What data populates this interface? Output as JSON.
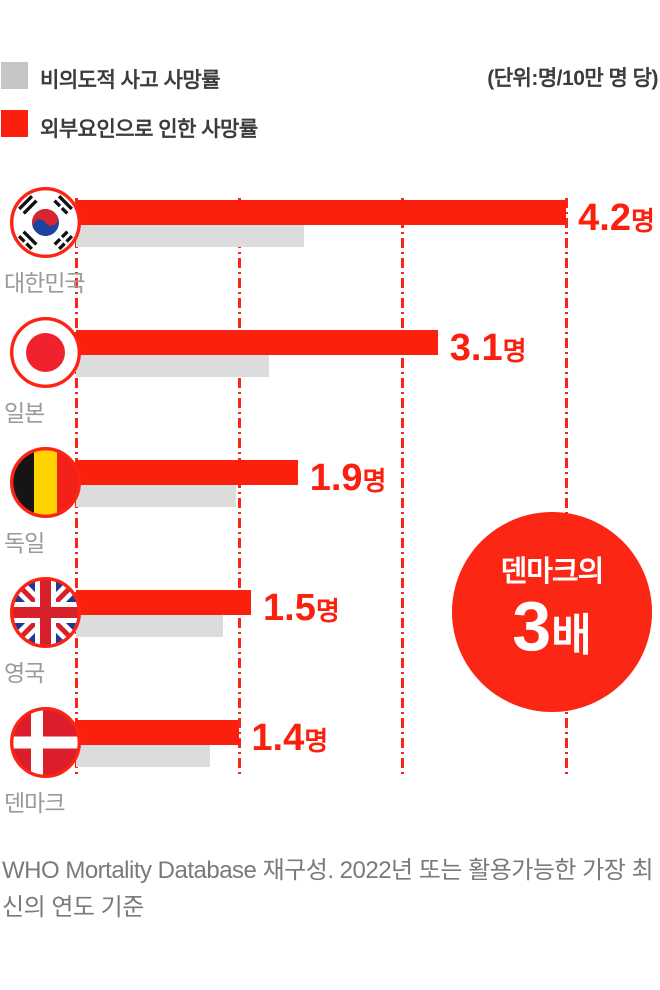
{
  "unit_label": "(단위:명/10만 명 당)",
  "legend": {
    "items": [
      {
        "label": "비의도적 사고 사망률",
        "color": "#c6c6c8"
      },
      {
        "label": "외부요인으로 인한 사망률",
        "color": "#fb1f0e"
      }
    ]
  },
  "chart_data": {
    "type": "bar",
    "orientation": "horizontal",
    "unit": "명/10만 명 당",
    "categories": [
      "대한민국",
      "일본",
      "독일",
      "영국",
      "덴마크"
    ],
    "flag_codes": [
      "kr",
      "jp",
      "be",
      "gb",
      "dk"
    ],
    "series": [
      {
        "name": "외부요인으로 인한 사망률",
        "color": "#fb1f0e",
        "values": [
          4.2,
          3.1,
          1.9,
          1.5,
          1.4
        ],
        "display": [
          "4.2",
          "3.1",
          "1.9",
          "1.5",
          "1.4"
        ]
      },
      {
        "name": "비의도적 사고 사망률",
        "color": "#dcdcdc",
        "values": [
          1.95,
          1.65,
          1.37,
          1.26,
          1.15
        ]
      }
    ],
    "value_suffix": "명",
    "gridlines_x": [
      0,
      1.4,
      2.8,
      4.2
    ],
    "xlim": [
      0,
      5.0
    ],
    "legend_position": "top-left",
    "grid": "dashed-red-vertical"
  },
  "annotation_badge": {
    "line1": "덴마크의",
    "value": "3",
    "suffix": "배",
    "color": "#fc2615",
    "text_color": "#ffffff"
  },
  "source_note": "WHO Mortality Database 재구성. 2022년 또는 활용가능한 가장 최신의 연도 기준"
}
